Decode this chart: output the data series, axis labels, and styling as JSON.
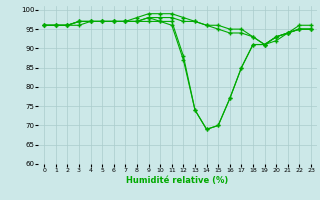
{
  "title": "",
  "xlabel": "Humidité relative (%)",
  "ylabel": "",
  "bg_color": "#cce8e8",
  "grid_color": "#aacccc",
  "line_color": "#00aa00",
  "marker": "+",
  "xlim": [
    -0.5,
    23.5
  ],
  "ylim": [
    60,
    101
  ],
  "yticks": [
    60,
    65,
    70,
    75,
    80,
    85,
    90,
    95,
    100
  ],
  "xticks": [
    0,
    1,
    2,
    3,
    4,
    5,
    6,
    7,
    8,
    9,
    10,
    11,
    12,
    13,
    14,
    15,
    16,
    17,
    18,
    19,
    20,
    21,
    22,
    23
  ],
  "series": [
    [
      96,
      96,
      96,
      97,
      97,
      97,
      97,
      97,
      97,
      98,
      98,
      98,
      97,
      97,
      96,
      96,
      95,
      95,
      93,
      91,
      93,
      94,
      96,
      96
    ],
    [
      96,
      96,
      96,
      97,
      97,
      97,
      97,
      97,
      98,
      99,
      99,
      99,
      98,
      97,
      96,
      95,
      94,
      94,
      93,
      91,
      92,
      94,
      95,
      95
    ],
    [
      96,
      96,
      96,
      97,
      97,
      97,
      97,
      97,
      97,
      98,
      97,
      97,
      88,
      74,
      69,
      70,
      77,
      85,
      91,
      91,
      93,
      94,
      95,
      95
    ],
    [
      96,
      96,
      96,
      96,
      97,
      97,
      97,
      97,
      97,
      97,
      97,
      96,
      87,
      74,
      69,
      70,
      77,
      85,
      91,
      91,
      93,
      94,
      95,
      95
    ]
  ]
}
